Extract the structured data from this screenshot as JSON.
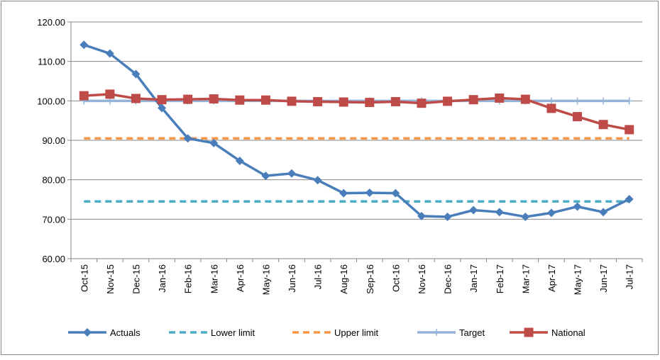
{
  "chart_data": {
    "type": "line",
    "categories": [
      "Oct-15",
      "Nov-15",
      "Dec-15",
      "Jan-16",
      "Feb-16",
      "Mar-16",
      "Apr-16",
      "May-16",
      "Jun-16",
      "Jul-16",
      "Aug-16",
      "Sep-16",
      "Oct-16",
      "Nov-16",
      "Dec-16",
      "Jan-17",
      "Feb-17",
      "Mar-17",
      "Apr-17",
      "May-17",
      "Jun-17",
      "Jul-17"
    ],
    "series": [
      {
        "name": "Actuals",
        "color": "#4a7ebb",
        "line_style": "solid",
        "marker": "diamond",
        "values": [
          114.2,
          112.0,
          106.8,
          98.2,
          90.5,
          89.3,
          84.8,
          81.0,
          81.6,
          79.9,
          76.6,
          76.7,
          76.6,
          70.8,
          70.6,
          72.3,
          71.8,
          70.6,
          71.6,
          73.2,
          71.8,
          75.1
        ]
      },
      {
        "name": "Lower limit",
        "color": "#4bacc6",
        "line_style": "dashed",
        "marker": "none",
        "values": [
          74.5,
          74.5,
          74.5,
          74.5,
          74.5,
          74.5,
          74.5,
          74.5,
          74.5,
          74.5,
          74.5,
          74.5,
          74.5,
          74.5,
          74.5,
          74.5,
          74.5,
          74.5,
          74.5,
          74.5,
          74.5,
          74.5
        ]
      },
      {
        "name": "Upper limit",
        "color": "#f79646",
        "line_style": "dashed",
        "marker": "none",
        "values": [
          90.5,
          90.5,
          90.5,
          90.5,
          90.5,
          90.5,
          90.5,
          90.5,
          90.5,
          90.5,
          90.5,
          90.5,
          90.5,
          90.5,
          90.5,
          90.5,
          90.5,
          90.5,
          90.5,
          90.5,
          90.5,
          90.5
        ]
      },
      {
        "name": "Target",
        "color": "#95b3d7",
        "line_style": "solid",
        "marker": "plus",
        "values": [
          100,
          100,
          100,
          100,
          100,
          100,
          100,
          100,
          100,
          100,
          100,
          100,
          100,
          100,
          100,
          100,
          100,
          100,
          100,
          100,
          100,
          100
        ]
      },
      {
        "name": "National",
        "color": "#be4b48",
        "line_style": "solid",
        "marker": "square",
        "values": [
          101.3,
          101.7,
          100.6,
          100.3,
          100.4,
          100.5,
          100.2,
          100.2,
          99.9,
          99.8,
          99.7,
          99.6,
          99.8,
          99.4,
          99.9,
          100.3,
          100.7,
          100.4,
          98.1,
          96.0,
          94.0,
          92.7
        ]
      }
    ],
    "ylim": [
      60,
      120
    ],
    "yticks": [
      {
        "value": 60,
        "label": "60.00"
      },
      {
        "value": 70,
        "label": "70.00"
      },
      {
        "value": 80,
        "label": "80.00"
      },
      {
        "value": 90,
        "label": "90.00"
      },
      {
        "value": 100,
        "label": "100.00"
      },
      {
        "value": 110,
        "label": "110.00"
      },
      {
        "value": 120,
        "label": "120.00"
      }
    ],
    "grid": true,
    "legend": "bottom"
  }
}
